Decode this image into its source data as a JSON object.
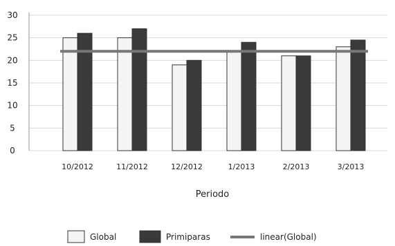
{
  "chart_data": {
    "type": "bar",
    "categories": [
      "10/2012",
      "11/2012",
      "12/2012",
      "1/2013",
      "2/2013",
      "3/2013"
    ],
    "series": [
      {
        "name": "Global",
        "values": [
          25,
          25,
          19,
          22,
          21,
          23
        ],
        "color": "#f4f4f4"
      },
      {
        "name": "Primiparas",
        "values": [
          26,
          27,
          20,
          24,
          21,
          24.5
        ],
        "color": "#3a3a3a"
      }
    ],
    "trendline": {
      "name": "linear(Global)",
      "start": 22,
      "end": 22,
      "color": "#777777"
    },
    "xlabel": "Periodo",
    "ylabel": "",
    "ylim": [
      0,
      30
    ],
    "yticks": [
      0,
      5,
      10,
      15,
      20,
      25,
      30
    ],
    "grid": true,
    "legend": "bottom"
  }
}
